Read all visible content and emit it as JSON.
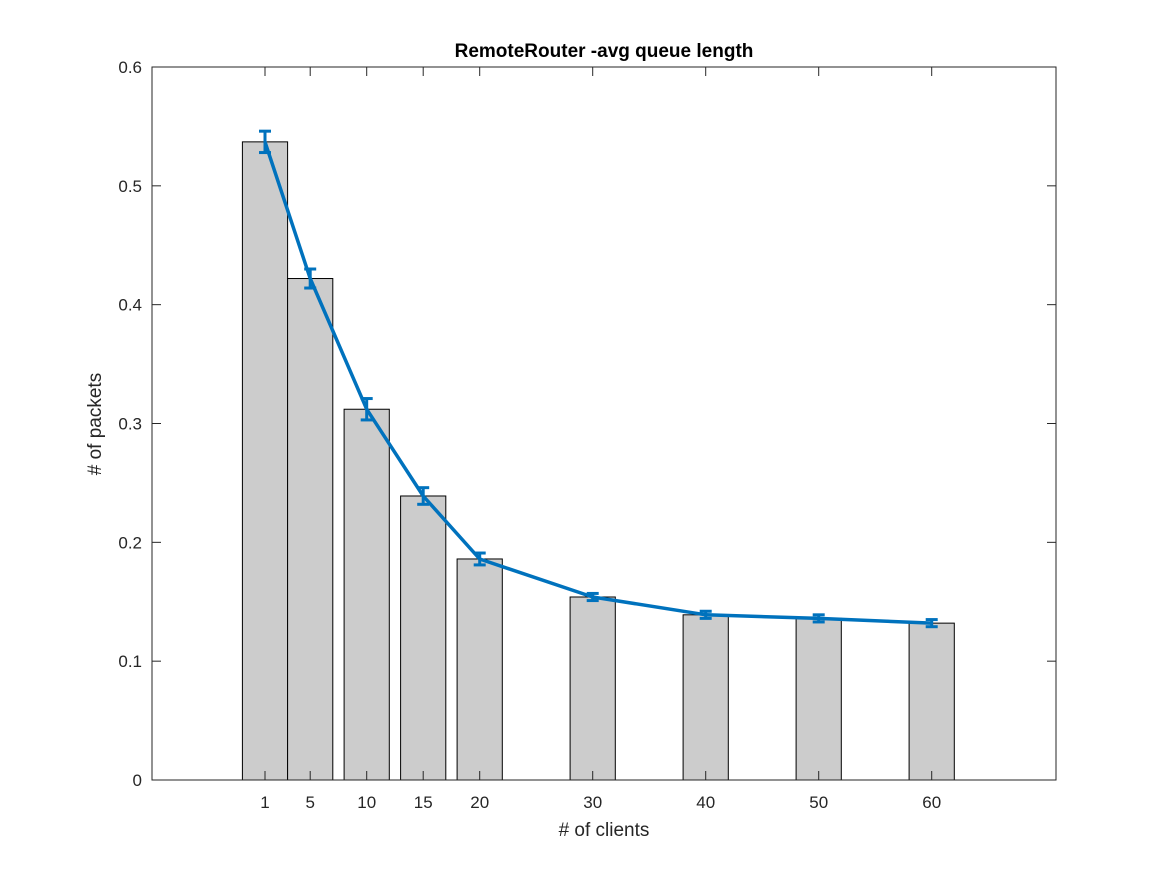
{
  "chart_data": {
    "type": "bar",
    "title": "RemoteRouter -avg queue length",
    "xlabel": "# of clients",
    "ylabel": "# of packets",
    "categories": [
      "1",
      "5",
      "10",
      "15",
      "20",
      "30",
      "40",
      "50",
      "60"
    ],
    "x": [
      1,
      5,
      10,
      15,
      20,
      30,
      40,
      50,
      60
    ],
    "values": [
      0.537,
      0.422,
      0.312,
      0.239,
      0.186,
      0.154,
      0.139,
      0.136,
      0.132
    ],
    "line": {
      "values": [
        0.537,
        0.422,
        0.312,
        0.239,
        0.186,
        0.154,
        0.139,
        0.136,
        0.132
      ],
      "error": [
        0.009,
        0.008,
        0.009,
        0.007,
        0.005,
        0.003,
        0.003,
        0.003,
        0.003
      ]
    },
    "xlim": [
      -9,
      71
    ],
    "ylim": [
      0,
      0.6
    ],
    "yticks": [
      0,
      0.1,
      0.2,
      0.3,
      0.4,
      0.5,
      0.6
    ],
    "ytick_labels": [
      "0",
      "0.1",
      "0.2",
      "0.3",
      "0.4",
      "0.5",
      "0.6"
    ],
    "grid": false,
    "colors": {
      "bar_fill": "#cccccc",
      "bar_edge": "#000000",
      "line": "#0072bd"
    }
  }
}
